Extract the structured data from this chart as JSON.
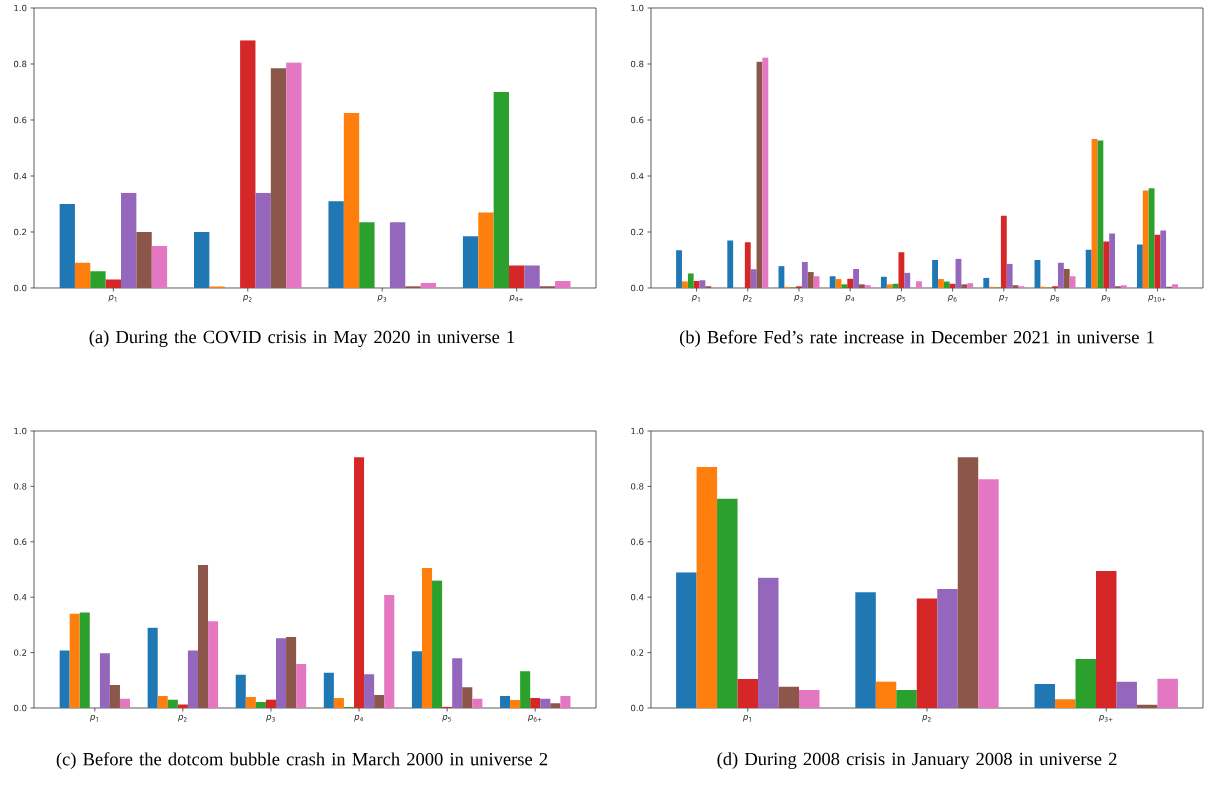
{
  "chart_data": [
    {
      "type": "bar",
      "categories": [
        "*p*$_{1}$",
        "*p*$_{2}$",
        "*p*$_{3}$",
        "*p*$_{4+}$"
      ],
      "series": [
        {
          "color": "#1f77b4",
          "values": [
            0.3,
            0.2,
            0.31,
            0.185
          ]
        },
        {
          "color": "#ff7f0e",
          "values": [
            0.09,
            0.005,
            0.625,
            0.27
          ]
        },
        {
          "color": "#2ca02c",
          "values": [
            0.06,
            0,
            0.235,
            0.7
          ]
        },
        {
          "color": "#d62728",
          "values": [
            0.03,
            0.885,
            0,
            0.08
          ]
        },
        {
          "color": "#9467bd",
          "values": [
            0.34,
            0.34,
            0.235,
            0.08
          ]
        },
        {
          "color": "#8c564b",
          "values": [
            0.2,
            0.785,
            0.006,
            0.006
          ]
        },
        {
          "color": "#e377c2",
          "values": [
            0.15,
            0.805,
            0.018,
            0.025
          ]
        }
      ],
      "ylim": [
        0,
        1
      ],
      "yticks": [
        {
          "value": 0,
          "label": "0.0"
        },
        {
          "value": 0.2,
          "label": "0.2"
        },
        {
          "value": 0.4,
          "label": "0.4"
        },
        {
          "value": 0.6,
          "label": "0.6"
        },
        {
          "value": 0.8,
          "label": "0.8"
        },
        {
          "value": 1,
          "label": "1.0"
        }
      ],
      "annotations": [
        "(a) During the COVID crisis in May 2020 in universe 1"
      ]
    },
    {
      "type": "bar",
      "categories": [
        "*p*$_{1}$",
        "*p*$_{2}$",
        "*p*$_{3}$",
        "*p*$_{4}$",
        "*p*$_{5}$",
        "*p*$_{6}$",
        "*p*$_{7}$",
        "*p*$_{8}$",
        "*p*$_{9}$",
        "*p*$_{10+}$"
      ],
      "series": [
        {
          "color": "#1f77b4",
          "values": [
            0.135,
            0.17,
            0.078,
            0.042,
            0.04,
            0.1,
            0.036,
            0.1,
            0.137,
            0.155
          ]
        },
        {
          "color": "#ff7f0e",
          "values": [
            0.023,
            0,
            0.004,
            0.032,
            0.013,
            0.032,
            0.004,
            0.004,
            0.532,
            0.348
          ]
        },
        {
          "color": "#2ca02c",
          "values": [
            0.052,
            0,
            0.002,
            0.013,
            0.015,
            0.023,
            0.002,
            0.002,
            0.527,
            0.356
          ]
        },
        {
          "color": "#d62728",
          "values": [
            0.025,
            0.163,
            0.006,
            0.033,
            0.128,
            0.015,
            0.258,
            0.006,
            0.166,
            0.19
          ]
        },
        {
          "color": "#9467bd",
          "values": [
            0.028,
            0.067,
            0.093,
            0.068,
            0.054,
            0.104,
            0.086,
            0.09,
            0.195,
            0.205
          ]
        },
        {
          "color": "#8c564b",
          "values": [
            0.006,
            0.808,
            0.057,
            0.013,
            0,
            0.013,
            0.01,
            0.068,
            0.006,
            0.004
          ]
        },
        {
          "color": "#e377c2",
          "values": [
            0.002,
            0.823,
            0.042,
            0.01,
            0.024,
            0.017,
            0.006,
            0.042,
            0.01,
            0.013
          ]
        }
      ],
      "ylim": [
        0,
        1
      ],
      "yticks": [
        {
          "value": 0,
          "label": "0.0"
        },
        {
          "value": 0.2,
          "label": "0.2"
        },
        {
          "value": 0.4,
          "label": "0.4"
        },
        {
          "value": 0.6,
          "label": "0.6"
        },
        {
          "value": 0.8,
          "label": "0.8"
        },
        {
          "value": 1,
          "label": "1.0"
        }
      ],
      "annotations": [
        "(b) Before Fed’s rate increase in December 2021 in universe 1"
      ]
    },
    {
      "type": "bar",
      "categories": [
        "*p*$_{1}$",
        "*p*$_{2}$",
        "*p*$_{3}$",
        "*p*$_{4}$",
        "*p*$_{5}$",
        "*p*$_{6+}$"
      ],
      "series": [
        {
          "color": "#1f77b4",
          "values": [
            0.208,
            0.29,
            0.12,
            0.127,
            0.205,
            0.043
          ]
        },
        {
          "color": "#ff7f0e",
          "values": [
            0.34,
            0.043,
            0.04,
            0.036,
            0.505,
            0.029
          ]
        },
        {
          "color": "#2ca02c",
          "values": [
            0.345,
            0.03,
            0.022,
            0.004,
            0.46,
            0.133
          ]
        },
        {
          "color": "#d62728",
          "values": [
            0,
            0.013,
            0.03,
            0.905,
            0.004,
            0.036
          ]
        },
        {
          "color": "#9467bd",
          "values": [
            0.198,
            0.208,
            0.252,
            0.122,
            0.18,
            0.033
          ]
        },
        {
          "color": "#8c564b",
          "values": [
            0.083,
            0.516,
            0.256,
            0.047,
            0.075,
            0.017
          ]
        },
        {
          "color": "#e377c2",
          "values": [
            0.033,
            0.313,
            0.159,
            0.408,
            0.033,
            0.043
          ]
        }
      ],
      "ylim": [
        0,
        1
      ],
      "yticks": [
        {
          "value": 0,
          "label": "0.0"
        },
        {
          "value": 0.2,
          "label": "0.2"
        },
        {
          "value": 0.4,
          "label": "0.4"
        },
        {
          "value": 0.6,
          "label": "0.6"
        },
        {
          "value": 0.8,
          "label": "0.8"
        },
        {
          "value": 1,
          "label": "1.0"
        }
      ],
      "annotations": [
        "(c) Before the dotcom bubble crash in March 2000 in universe 2"
      ]
    },
    {
      "type": "bar",
      "categories": [
        "*p*$_{1}$",
        "*p*$_{2}$",
        "*p*$_{3+}$"
      ],
      "series": [
        {
          "color": "#1f77b4",
          "values": [
            0.49,
            0.418,
            0.087
          ]
        },
        {
          "color": "#ff7f0e",
          "values": [
            0.87,
            0.095,
            0.032
          ]
        },
        {
          "color": "#2ca02c",
          "values": [
            0.755,
            0.065,
            0.177
          ]
        },
        {
          "color": "#d62728",
          "values": [
            0.105,
            0.395,
            0.495
          ]
        },
        {
          "color": "#9467bd",
          "values": [
            0.47,
            0.43,
            0.095
          ]
        },
        {
          "color": "#8c564b",
          "values": [
            0.077,
            0.905,
            0.012
          ]
        },
        {
          "color": "#e377c2",
          "values": [
            0.065,
            0.826,
            0.106
          ]
        }
      ],
      "ylim": [
        0,
        1
      ],
      "yticks": [
        {
          "value": 0,
          "label": "0.0"
        },
        {
          "value": 0.2,
          "label": "0.2"
        },
        {
          "value": 0.4,
          "label": "0.4"
        },
        {
          "value": 0.6,
          "label": "0.6"
        },
        {
          "value": 0.8,
          "label": "0.8"
        },
        {
          "value": 1,
          "label": "1.0"
        }
      ],
      "annotations": [
        "(d) During 2008 crisis in January 2008 in universe 2"
      ]
    }
  ]
}
